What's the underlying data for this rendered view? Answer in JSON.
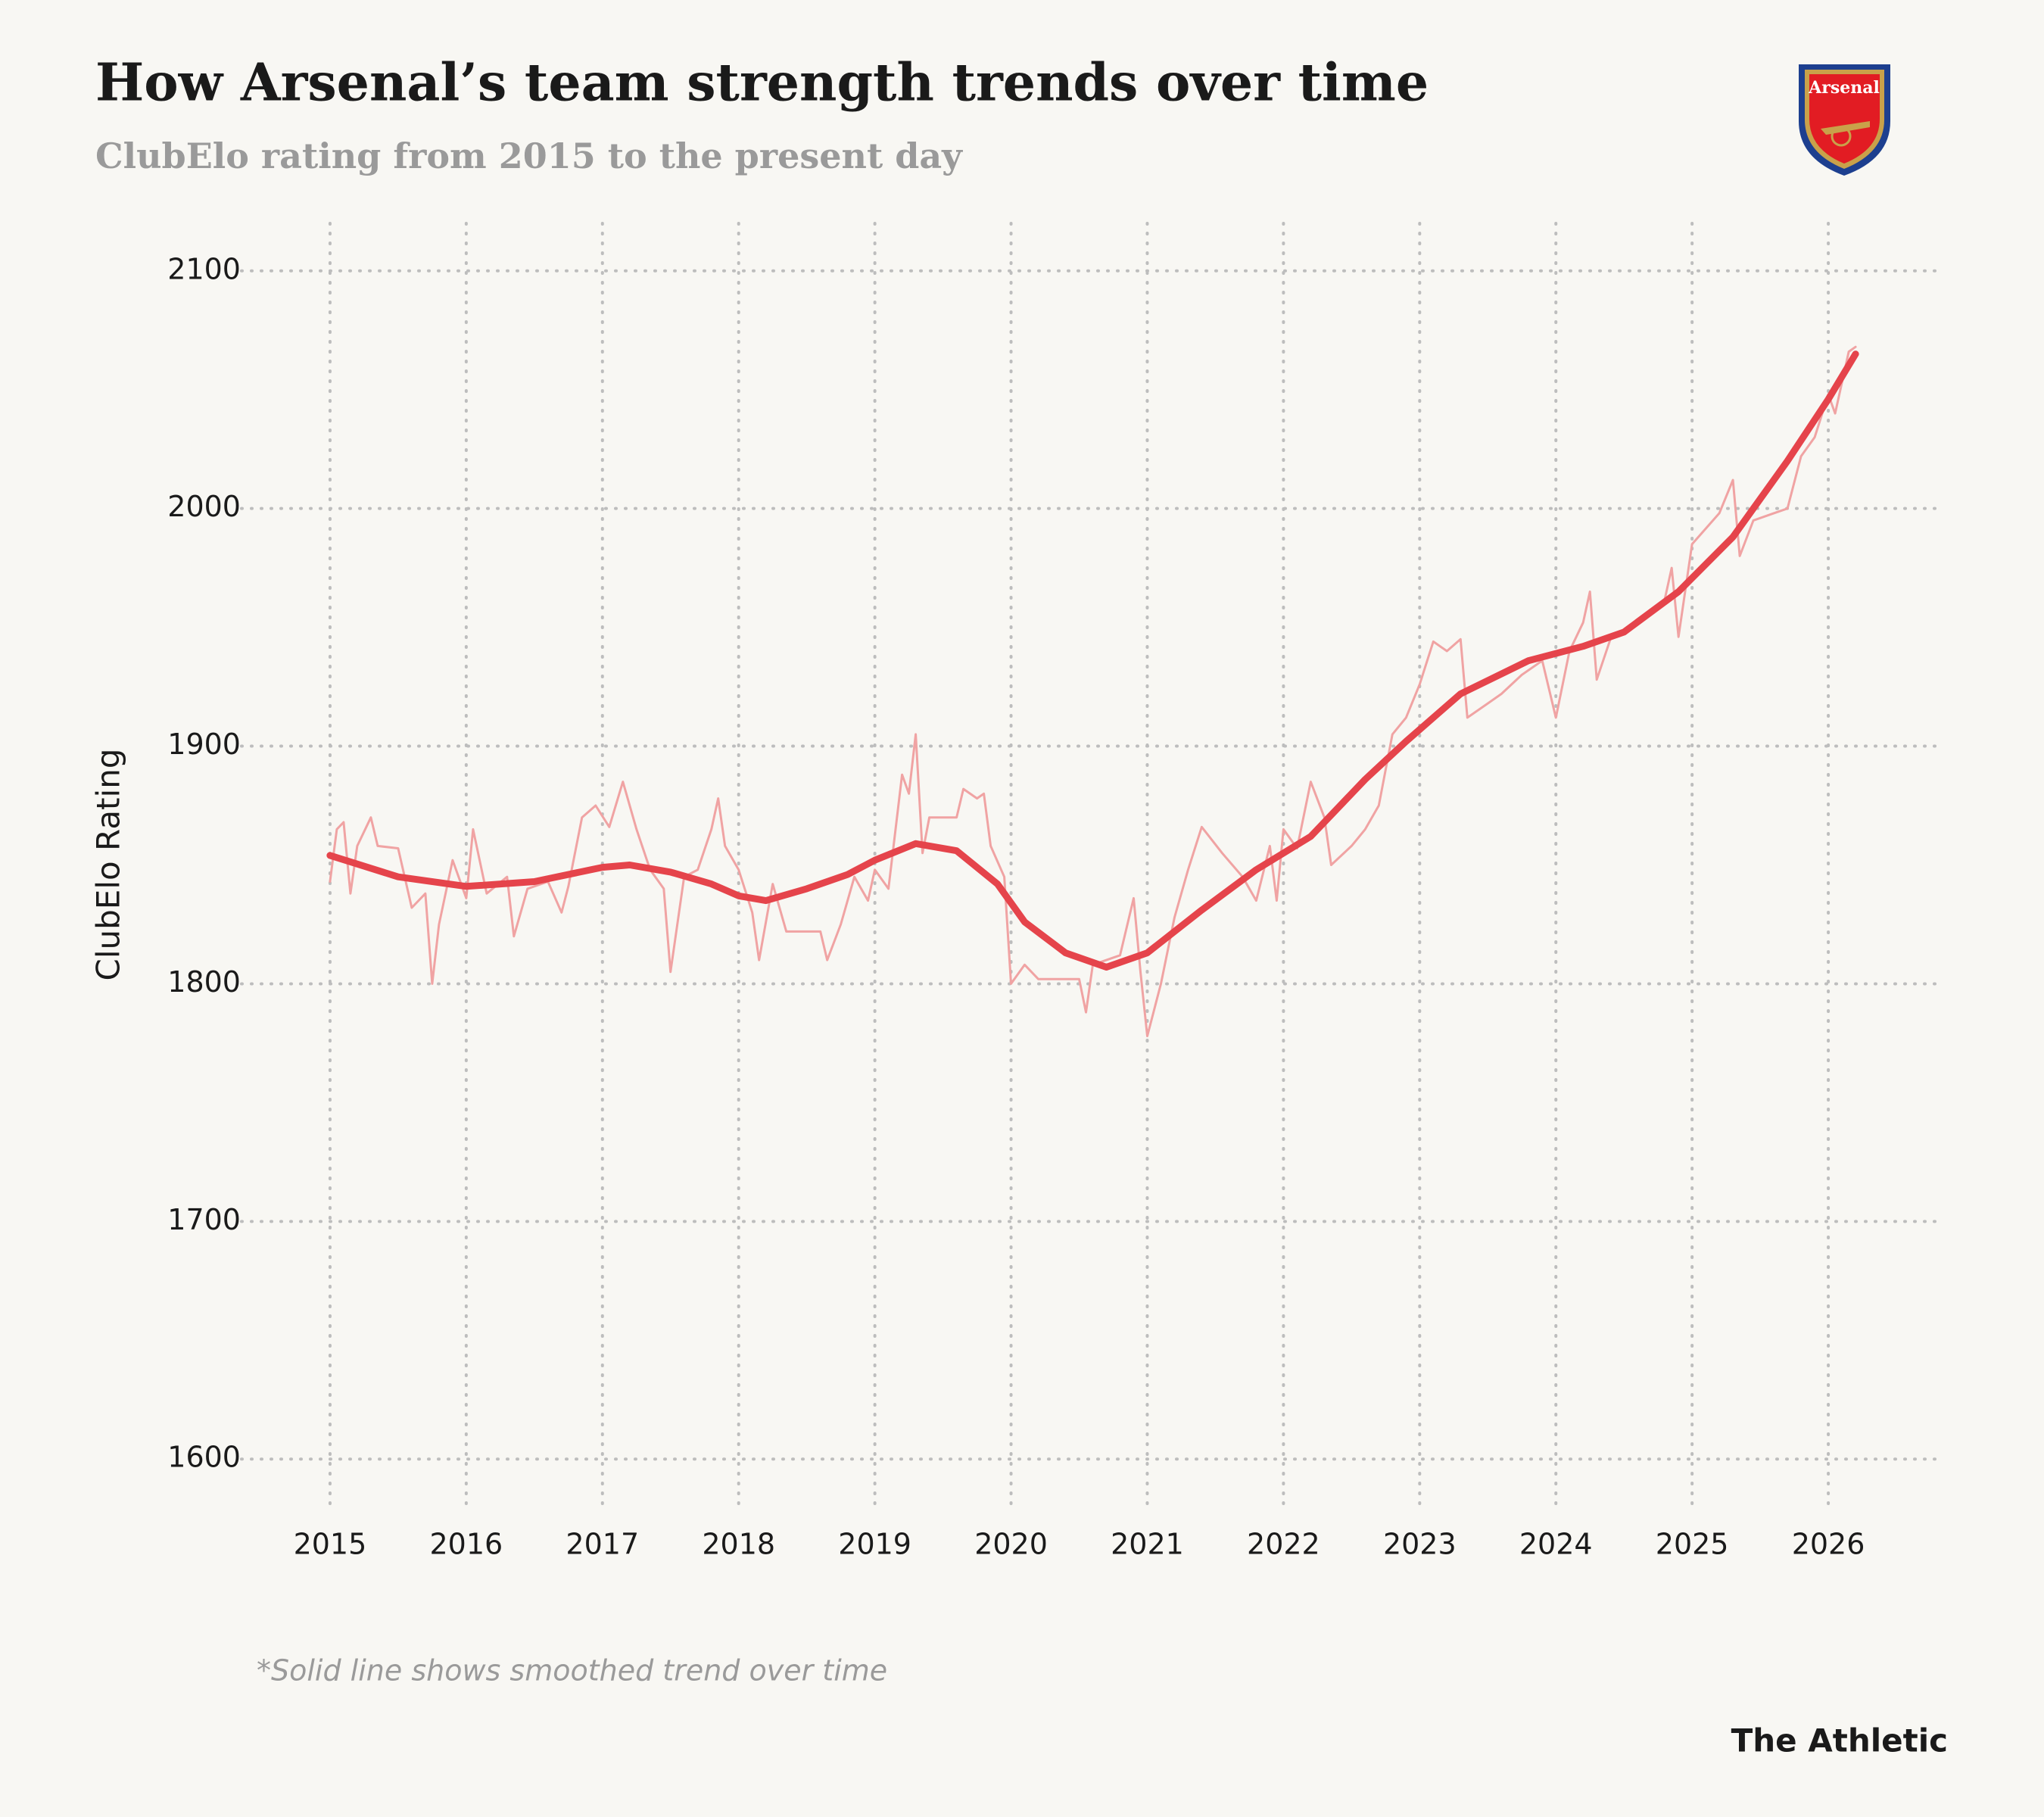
{
  "chart_data": {
    "type": "line",
    "title": "How Arsenal’s team strength trends over time",
    "subtitle": "ClubElo rating from 2015 to the present day",
    "y_label": "ClubElo Rating",
    "note": "*Solid line shows smoothed trend over time",
    "source": "The Athletic",
    "logo_text": "Arsenal",
    "xlim": [
      2014.35,
      2026.85
    ],
    "xticks": [
      2015,
      2016,
      2017,
      2018,
      2019,
      2020,
      2021,
      2022,
      2023,
      2024,
      2025,
      2026
    ],
    "ylim": [
      1580,
      2120
    ],
    "yticks": [
      1600,
      1700,
      1800,
      1900,
      2000,
      2100
    ],
    "grid": true,
    "series": [
      {
        "color": "#f0a3a3",
        "width": 3,
        "x": [
          2015.0,
          2015.05,
          2015.1,
          2015.15,
          2015.2,
          2015.3,
          2015.35,
          2015.5,
          2015.6,
          2015.7,
          2015.75,
          2015.8,
          2015.9,
          2016.0,
          2016.05,
          2016.15,
          2016.3,
          2016.35,
          2016.45,
          2016.6,
          2016.7,
          2016.75,
          2016.85,
          2016.95,
          2017.05,
          2017.15,
          2017.25,
          2017.35,
          2017.45,
          2017.5,
          2017.6,
          2017.7,
          2017.8,
          2017.85,
          2017.9,
          2018.0,
          2018.1,
          2018.15,
          2018.25,
          2018.35,
          2018.45,
          2018.6,
          2018.65,
          2018.75,
          2018.85,
          2018.95,
          2019.0,
          2019.1,
          2019.2,
          2019.25,
          2019.3,
          2019.35,
          2019.4,
          2019.6,
          2019.65,
          2019.75,
          2019.8,
          2019.85,
          2019.95,
          2020.0,
          2020.1,
          2020.2,
          2020.5,
          2020.55,
          2020.6,
          2020.8,
          2020.9,
          2020.95,
          2021.0,
          2021.1,
          2021.2,
          2021.3,
          2021.4,
          2021.55,
          2021.7,
          2021.8,
          2021.9,
          2021.95,
          2022.0,
          2022.1,
          2022.2,
          2022.3,
          2022.35,
          2022.5,
          2022.6,
          2022.7,
          2022.8,
          2022.9,
          2023.0,
          2023.1,
          2023.2,
          2023.3,
          2023.35,
          2023.5,
          2023.6,
          2023.75,
          2023.9,
          2024.0,
          2024.1,
          2024.2,
          2024.25,
          2024.3,
          2024.4,
          2024.6,
          2024.8,
          2024.85,
          2024.9,
          2025.0,
          2025.2,
          2025.3,
          2025.35,
          2025.45,
          2025.6,
          2025.7,
          2025.8,
          2025.9,
          2026.0,
          2026.05,
          2026.15,
          2026.2
        ],
        "values": [
          1843,
          1865,
          1868,
          1838,
          1858,
          1870,
          1858,
          1857,
          1832,
          1838,
          1800,
          1825,
          1852,
          1836,
          1865,
          1838,
          1845,
          1820,
          1840,
          1843,
          1830,
          1841,
          1870,
          1875,
          1866,
          1885,
          1865,
          1848,
          1840,
          1805,
          1845,
          1848,
          1865,
          1878,
          1858,
          1848,
          1830,
          1810,
          1842,
          1822,
          1822,
          1822,
          1810,
          1825,
          1845,
          1835,
          1848,
          1840,
          1888,
          1880,
          1905,
          1855,
          1870,
          1870,
          1882,
          1878,
          1880,
          1858,
          1845,
          1800,
          1808,
          1802,
          1802,
          1788,
          1808,
          1812,
          1836,
          1805,
          1778,
          1800,
          1828,
          1848,
          1866,
          1855,
          1845,
          1835,
          1858,
          1835,
          1865,
          1857,
          1885,
          1870,
          1850,
          1858,
          1865,
          1875,
          1905,
          1912,
          1926,
          1944,
          1940,
          1945,
          1912,
          1918,
          1922,
          1930,
          1936,
          1912,
          1940,
          1952,
          1965,
          1928,
          1945,
          1952,
          1962,
          1975,
          1946,
          1985,
          1998,
          2012,
          1980,
          1995,
          1998,
          2000,
          2022,
          2030,
          2048,
          2040,
          2066,
          2068
        ]
      },
      {
        "color": "#e5444b",
        "width": 9,
        "x": [
          2015.0,
          2015.5,
          2016.0,
          2016.5,
          2017.0,
          2017.2,
          2017.5,
          2017.8,
          2018.0,
          2018.2,
          2018.5,
          2018.8,
          2019.0,
          2019.3,
          2019.6,
          2019.9,
          2020.1,
          2020.4,
          2020.7,
          2021.0,
          2021.4,
          2021.8,
          2022.2,
          2022.6,
          2022.9,
          2023.3,
          2023.8,
          2024.2,
          2024.5,
          2024.9,
          2025.3,
          2025.7,
          2026.0,
          2026.2
        ],
        "values": [
          1854,
          1845,
          1841,
          1843,
          1849,
          1850,
          1847,
          1842,
          1837,
          1835,
          1840,
          1846,
          1852,
          1859,
          1856,
          1842,
          1826,
          1813,
          1807,
          1813,
          1831,
          1848,
          1862,
          1886,
          1902,
          1922,
          1936,
          1942,
          1948,
          1965,
          1988,
          2020,
          2046,
          2065
        ]
      }
    ]
  }
}
